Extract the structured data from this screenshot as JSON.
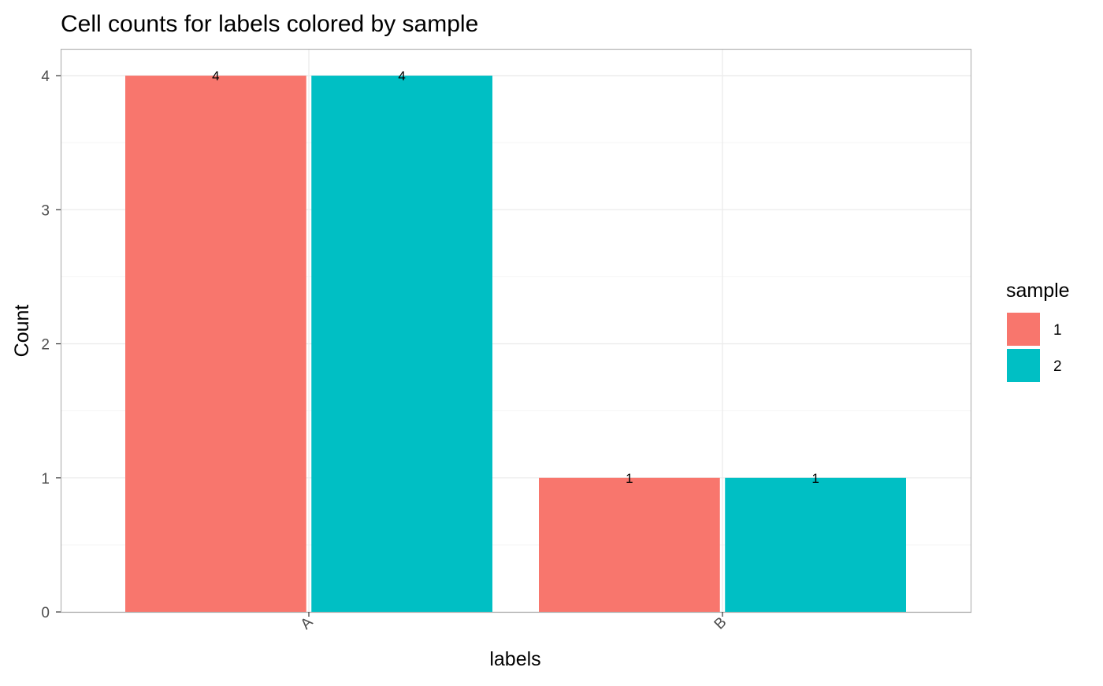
{
  "chart_data": {
    "type": "bar",
    "title": "Cell counts for labels colored by sample",
    "xlabel": "labels",
    "ylabel": "Count",
    "categories": [
      "A",
      "B"
    ],
    "series": [
      {
        "name": "1",
        "color": "#F8766D",
        "values": [
          4,
          1
        ]
      },
      {
        "name": "2",
        "color": "#00BFC4",
        "values": [
          4,
          1
        ]
      }
    ],
    "ylim": [
      0,
      4.2
    ],
    "yticks": [
      0,
      1,
      2,
      3,
      4
    ],
    "y_minor_ticks": [
      0.5,
      1.5,
      2.5,
      3.5
    ],
    "grid": true,
    "show_data_labels": true,
    "legend": {
      "title": "sample",
      "position": "right"
    },
    "colors": {
      "grid_major": "#EBEBEB",
      "grid_minor": "#F5F5F5",
      "panel_border": "#B3B3B3",
      "tick_text": "#4D4D4D"
    }
  }
}
